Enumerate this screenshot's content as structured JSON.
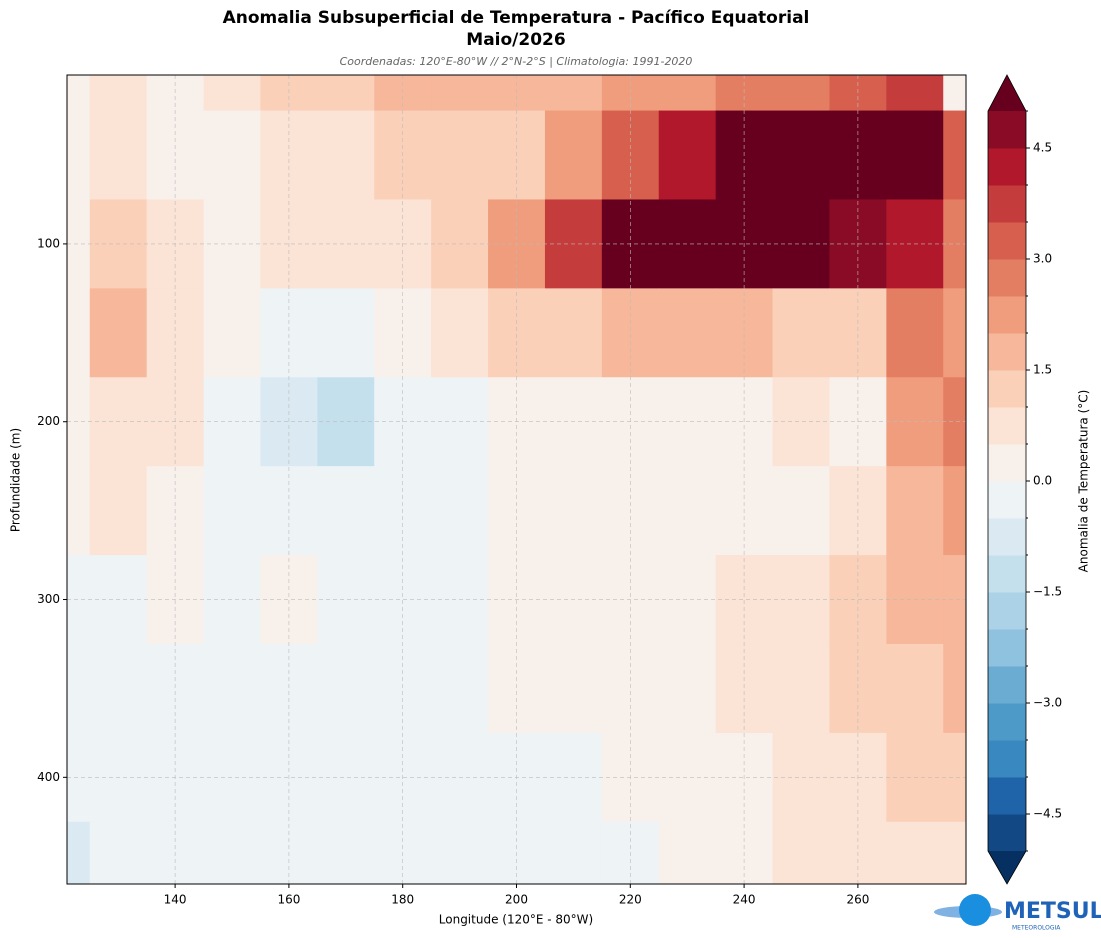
{
  "chart_data": {
    "type": "contourf",
    "title": [
      "Anomalia Subsuperficial de Temperatura - Pacífico Equatorial",
      "Maio/2026"
    ],
    "subtitle": "Coordenadas: 120°E-80°W // 2°N-2°S | Climatologia: 1991-2020",
    "xlabel": "Longitude (120°E - 80°W)",
    "ylabel": "Profundidade (m)",
    "colorbar_label": "Anomalia de Temperatura (°C)",
    "logo": "METSUL",
    "logo_sub": "METEOROLOGIA",
    "xlim": [
      121,
      279
    ],
    "ylim": [
      460,
      5
    ],
    "xticks": [
      140,
      160,
      180,
      200,
      220,
      240,
      260
    ],
    "yticks": [
      100,
      200,
      300,
      400
    ],
    "grid": true,
    "x": [
      120,
      130,
      140,
      150,
      160,
      170,
      180,
      190,
      200,
      210,
      220,
      230,
      240,
      250,
      260,
      270,
      280
    ],
    "y": [
      0,
      50,
      100,
      150,
      200,
      250,
      300,
      350,
      400,
      450
    ],
    "z": [
      [
        0.3,
        0.5,
        0.3,
        0.8,
        1.0,
        1.3,
        1.6,
        1.8,
        1.5,
        1.7,
        2.0,
        2.2,
        2.5,
        2.7,
        3.0,
        3.5,
        0
      ],
      [
        0,
        0.5,
        0.4,
        0.3,
        0.7,
        0.8,
        1.0,
        1.2,
        1.4,
        2.0,
        3.0,
        4.0,
        5.2,
        5.5,
        5.5,
        5.5,
        3.0
      ],
      [
        0.2,
        1.2,
        0.6,
        0.4,
        0.5,
        0.6,
        0.7,
        1.2,
        2.0,
        3.5,
        5.5,
        5.8,
        5.5,
        5.0,
        4.5,
        4.0,
        2.5
      ],
      [
        0.3,
        1.5,
        0.6,
        0.2,
        -0.3,
        -0.5,
        0.1,
        0.5,
        1.0,
        1.4,
        1.6,
        1.5,
        1.5,
        1.4,
        1.2,
        2.5,
        2.0
      ],
      [
        0.2,
        0.8,
        0.5,
        -0.3,
        -0.8,
        -1.2,
        -0.3,
        -0.1,
        0.3,
        0.3,
        0.3,
        0.4,
        0.3,
        0.5,
        0.4,
        2.0,
        2.5
      ],
      [
        0.1,
        0.5,
        0.3,
        -0.2,
        -0.4,
        -0.3,
        -0.2,
        -0.1,
        0.2,
        0.2,
        0.2,
        0.3,
        0.3,
        0.4,
        0.5,
        1.8,
        2.3
      ],
      [
        -0.1,
        -0.1,
        0.3,
        -0.1,
        0.1,
        -0.2,
        -0.2,
        -0.1,
        0.2,
        0.2,
        0.2,
        0.3,
        0.5,
        0.8,
        1.0,
        1.5,
        1.8
      ],
      [
        -0.2,
        -0.1,
        -0.1,
        -0.1,
        -0.1,
        -0.1,
        -0.1,
        -0.1,
        0.1,
        0.2,
        0.2,
        0.3,
        0.5,
        0.8,
        1.0,
        1.2,
        1.5
      ],
      [
        -0.4,
        -0.1,
        -0.1,
        -0.1,
        -0.1,
        -0.1,
        -0.1,
        -0.1,
        -0.1,
        -0.1,
        0.1,
        0.2,
        0.4,
        0.6,
        0.8,
        1.0,
        1.2
      ],
      [
        -0.6,
        -0.2,
        -0.1,
        -0.1,
        -0.1,
        -0.1,
        -0.1,
        -0.1,
        -0.1,
        -0.1,
        -0.1,
        0.1,
        0.3,
        0.5,
        0.6,
        0.8,
        0.5
      ]
    ],
    "levels": [
      -5,
      -4.5,
      -4,
      -3.5,
      -3,
      -2.5,
      -2,
      -1.5,
      -1,
      -0.5,
      0,
      0.5,
      1,
      1.5,
      2,
      2.5,
      3,
      3.5,
      4,
      4.5,
      5
    ],
    "colors": [
      "#124984",
      "#1f63a8",
      "#3a88c0",
      "#4d9ac8",
      "#6aacd2",
      "#8fc2de",
      "#abd2e6",
      "#c5e0ed",
      "#dbeaf2",
      "#eef3f6",
      "#f8f0eb",
      "#fbe3d5",
      "#fbd0b9",
      "#f7b79a",
      "#f09d7d",
      "#e47e63",
      "#d6604d",
      "#c43c3c",
      "#b2182b",
      "#8a0b25"
    ],
    "extend_colors": [
      "#053061",
      "#67001f"
    ],
    "cticks": [
      {
        "value": -4.5,
        "label": "−4.5"
      },
      {
        "value": -3,
        "label": "−3.0"
      },
      {
        "value": -1.5,
        "label": "−1.5"
      },
      {
        "value": 0,
        "label": "0.0"
      },
      {
        "value": 1.5,
        "label": "1.5"
      },
      {
        "value": 3,
        "label": "3.0"
      },
      {
        "value": 4.5,
        "label": "4.5"
      }
    ]
  }
}
